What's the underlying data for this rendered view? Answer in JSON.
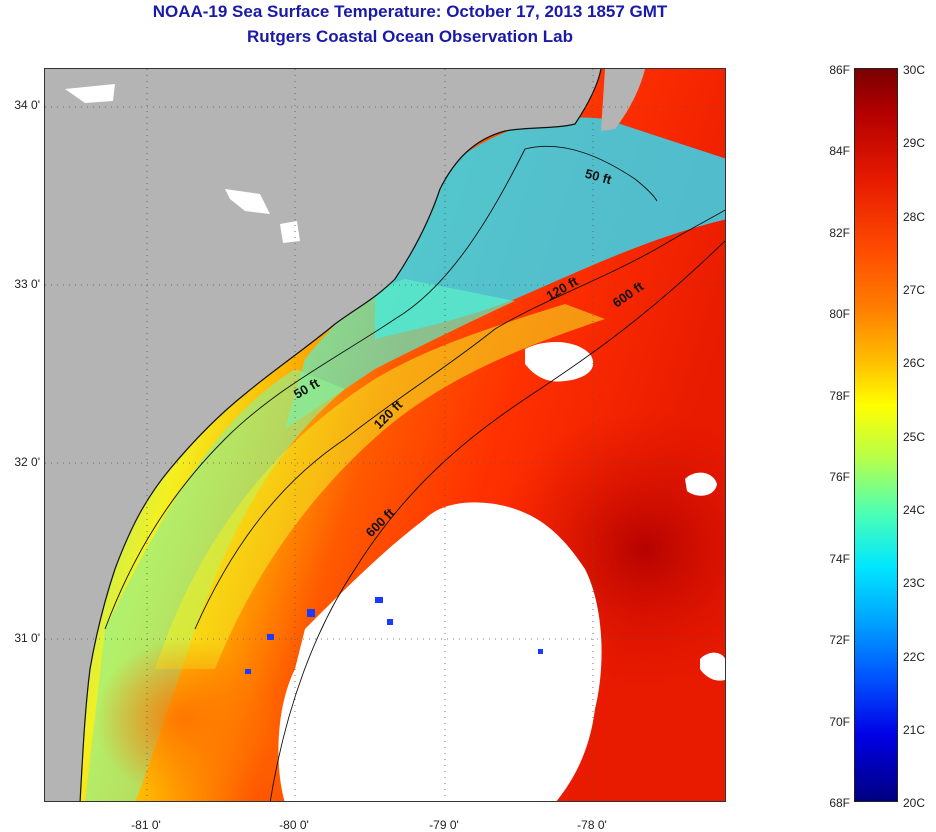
{
  "title_line1": "NOAA-19 Sea Surface Temperature:  October 17, 2013 1857 GMT",
  "title_line2": "Rutgers Coastal Ocean Observation Lab",
  "lat_labels": [
    "34 0'",
    "33 0'",
    "32 0'",
    "31 0'"
  ],
  "lon_labels": [
    "-81 0'",
    "-80 0'",
    "-79 0'",
    "-78 0'"
  ],
  "contour_labels": {
    "c50a": "50 ft",
    "c50b": "50 ft",
    "c120a": "120 ft",
    "c120b": "120 ft",
    "c600a": "600 ft",
    "c600b": "600 ft"
  },
  "colorbar": {
    "fahrenheit": [
      "86F",
      "84F",
      "82F",
      "80F",
      "78F",
      "76F",
      "74F",
      "72F",
      "70F",
      "68F"
    ],
    "celsius": [
      "30C",
      "29C",
      "28C",
      "27C",
      "26C",
      "25C",
      "24C",
      "23C",
      "22C",
      "21C",
      "20C"
    ],
    "colors": {
      "land": "#b4b4b4",
      "cloud": "#ffffff",
      "cold": "#000080",
      "warm": "#7a0000"
    }
  }
}
